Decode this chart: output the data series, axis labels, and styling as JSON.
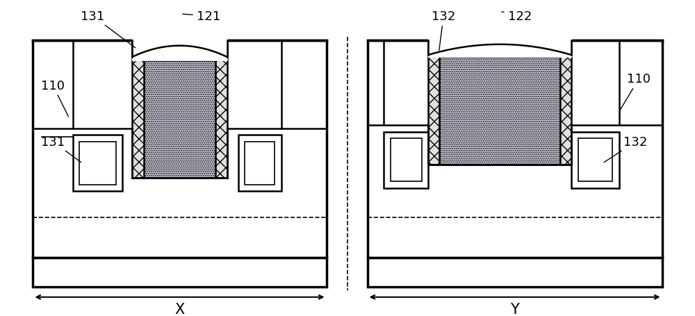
{
  "bg_color": "#ffffff",
  "line_color": "#000000",
  "lw": 2.5,
  "lw2": 1.8,
  "lw3": 1.2,
  "label_fontsize": 13,
  "dim_fontsize": 15,
  "x_label": "X",
  "y_label": "Y",
  "hatch_dot": "......",
  "hatch_cross": "xx"
}
